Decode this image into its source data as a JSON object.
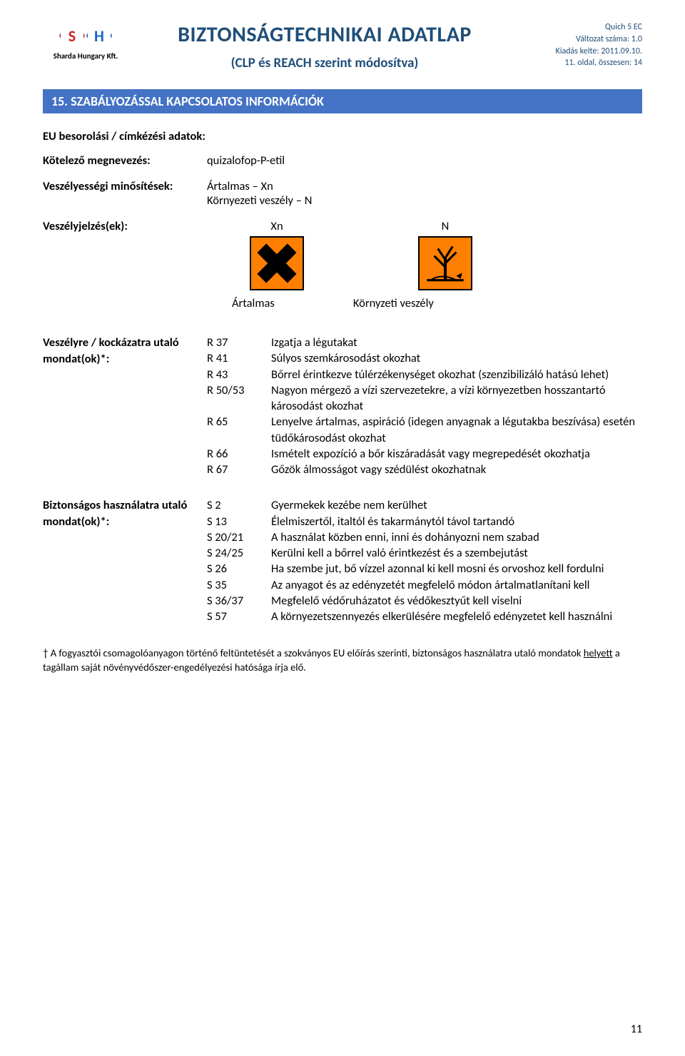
{
  "header": {
    "logo_company": "Sharda Hungary Kft.",
    "main_title": "BIZTONSÁGTECHNIKAI ADATLAP",
    "sub_title": "(CLP és REACH szerint módosítva)",
    "meta": {
      "product": "Quich 5 EC",
      "version": "Változat száma: 1.0",
      "issue": "Kiadás kelte: 2011.09.10.",
      "page": "11. oldal, összesen: 14"
    },
    "title_color": "#1f4e79",
    "meta_color": "#1f4e79"
  },
  "section_bar": {
    "text": "15.  SZABÁLYOZÁSSAL  KAPCSOLATOS  INFORMÁCIÓK",
    "bg": "#4472c4",
    "fg": "#ffffff"
  },
  "classification": {
    "heading": "EU besorolási / címkézési adatok:",
    "rows": [
      {
        "label": "Kötelező megnevezés:",
        "value": "quizalofop-P-etil"
      },
      {
        "label": "Veszélyességi minősítések:",
        "value": "Ártalmas – Xn\nKörnyezeti veszély – N"
      }
    ]
  },
  "hazard_symbols": {
    "label": "Veszélyjelzés(ek):",
    "items": [
      {
        "code": "Xn",
        "caption": "Ártalmas",
        "icon": "harmful-x",
        "bg": "#ff7f00"
      },
      {
        "code": "N",
        "caption": "Környzeti veszély",
        "icon": "env-hazard",
        "bg": "#ff7f00"
      }
    ]
  },
  "r_phrases": {
    "label": "Veszélyre / kockázatra utaló mondat(ok)*:",
    "items": [
      {
        "code": "R 37",
        "text": "Izgatja a légutakat"
      },
      {
        "code": "R 41",
        "text": "Súlyos szemkárosodást okozhat"
      },
      {
        "code": "R 43",
        "text": "Bőrrel érintkezve túlérzékenységet okozhat (szenzibilizáló hatású lehet)"
      },
      {
        "code": "R 50/53",
        "text": "Nagyon mérgező a vízi szervezetekre, a vízi környezetben hosszantartó károsodást okozhat"
      },
      {
        "code": "R 65",
        "text": "Lenyelve ártalmas, aspiráció (idegen anyagnak a légutakba beszívása) esetén tüdőkárosodást okozhat"
      },
      {
        "code": "R 66",
        "text": "Ismételt expozíció a bőr kiszáradását vagy megrepedését okozhatja"
      },
      {
        "code": "R 67",
        "text": "Gőzök álmosságot vagy szédülést okozhatnak"
      }
    ]
  },
  "s_phrases": {
    "label": "Biztonságos használatra utaló mondat(ok)*:",
    "items": [
      {
        "code": "S 2",
        "text": "Gyermekek kezébe nem kerülhet"
      },
      {
        "code": "S 13",
        "text": "Élelmiszertől, italtól és takarmánytól távol tartandó"
      },
      {
        "code": "S 20/21",
        "text": "A használat közben enni, inni és dohányozni nem szabad"
      },
      {
        "code": "S 24/25",
        "text": "Kerülni kell a bőrrel való érintkezést és a szembejutást"
      },
      {
        "code": "S 26",
        "text": "Ha szembe jut, bő vízzel azonnal ki kell mosni és orvoshoz kell fordulni"
      },
      {
        "code": "S 35",
        "text": "Az anyagot és az edényzetét megfelelő módon ártalmatlanítani kell"
      },
      {
        "code": "S 36/37",
        "text": "Megfelelő védőruházatot és védőkesztyűt kell viselni"
      },
      {
        "code": "S 57",
        "text": "A környezetszennyezés elkerülésére megfelelő edényzetet kell használni"
      }
    ]
  },
  "footer_note": {
    "prefix": "†",
    "text_part1": " A fogyasztói csomagolóanyagon történő feltüntetését a szokványos EU előírás szerinti, biztonságos használatra utaló mondatok ",
    "underlined": "helyett",
    "text_part2": " a tagállam saját növényvédőszer-engedélyezési hatósága írja elő."
  },
  "page_number": "11"
}
